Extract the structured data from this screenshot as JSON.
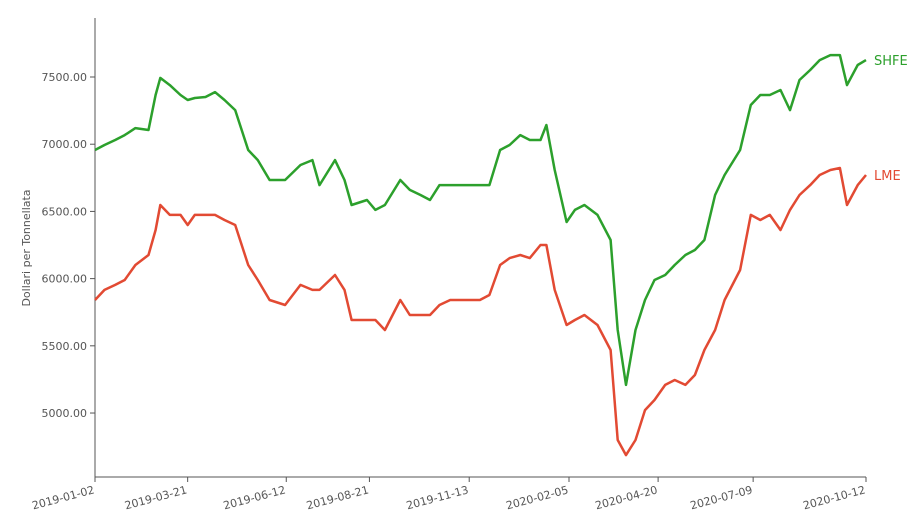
{
  "chart_data": {
    "type": "line",
    "y_label": "Dollari per Tonnellata",
    "x": [
      "2019-01-02",
      "2019-01-10",
      "2019-01-19",
      "2019-01-27",
      "2019-02-05",
      "2019-02-16",
      "2019-02-22",
      "2019-02-26",
      "2019-03-06",
      "2019-03-15",
      "2019-03-21",
      "2019-03-27",
      "2019-04-05",
      "2019-04-13",
      "2019-04-21",
      "2019-04-30",
      "2019-05-11",
      "2019-05-19",
      "2019-05-29",
      "2019-06-11",
      "2019-06-24",
      "2019-07-04",
      "2019-07-10",
      "2019-07-23",
      "2019-07-31",
      "2019-08-06",
      "2019-08-19",
      "2019-08-26",
      "2019-09-03",
      "2019-09-16",
      "2019-09-24",
      "2019-10-03",
      "2019-10-11",
      "2019-10-19",
      "2019-10-28",
      "2019-11-11",
      "2019-11-22",
      "2019-11-30",
      "2019-12-09",
      "2019-12-17",
      "2019-12-26",
      "2020-01-03",
      "2020-01-12",
      "2020-01-17",
      "2020-01-24",
      "2020-02-03",
      "2020-02-10",
      "2020-02-18",
      "2020-02-29",
      "2020-03-11",
      "2020-03-17",
      "2020-03-24",
      "2020-04-01",
      "2020-04-09",
      "2020-04-17",
      "2020-04-26",
      "2020-05-04",
      "2020-05-13",
      "2020-05-21",
      "2020-05-29",
      "2020-06-07",
      "2020-06-15",
      "2020-06-28",
      "2020-07-07",
      "2020-07-15",
      "2020-07-23",
      "2020-08-01",
      "2020-08-09",
      "2020-08-17",
      "2020-08-26",
      "2020-09-03",
      "2020-09-12",
      "2020-09-20",
      "2020-09-26",
      "2020-10-05",
      "2020-10-12"
    ],
    "series": [
      {
        "name": "SHFE",
        "color": "#2ca02c",
        "values": [
          6957,
          6994,
          7031,
          7068,
          7120,
          7106,
          7366,
          7493,
          7440,
          7366,
          7329,
          7344,
          7351,
          7388,
          7329,
          7254,
          6957,
          6882,
          6734,
          6734,
          6845,
          6882,
          6696,
          6882,
          6734,
          6548,
          6585,
          6511,
          6548,
          6734,
          6660,
          6622,
          6585,
          6696,
          6696,
          6696,
          6696,
          6696,
          6957,
          6994,
          7068,
          7031,
          7031,
          7143,
          6808,
          6421,
          6511,
          6548,
          6474,
          6287,
          5618,
          5209,
          5618,
          5841,
          5990,
          6027,
          6101,
          6176,
          6213,
          6287,
          6622,
          6771,
          6957,
          7292,
          7366,
          7366,
          7403,
          7254,
          7478,
          7552,
          7626,
          7663,
          7663,
          7440,
          7589,
          7626
        ]
      },
      {
        "name": "LME",
        "color": "#e24a33",
        "values": [
          5841,
          5916,
          5953,
          5990,
          6101,
          6176,
          6362,
          6548,
          6474,
          6474,
          6399,
          6474,
          6474,
          6474,
          6436,
          6399,
          6101,
          5990,
          5841,
          5804,
          5953,
          5916,
          5916,
          6027,
          5916,
          5692,
          5692,
          5692,
          5618,
          5841,
          5729,
          5729,
          5729,
          5804,
          5841,
          5841,
          5841,
          5878,
          6101,
          6153,
          6176,
          6153,
          6250,
          6250,
          5916,
          5655,
          5692,
          5729,
          5655,
          5469,
          4799,
          4687,
          4799,
          5022,
          5097,
          5209,
          5246,
          5209,
          5283,
          5469,
          5618,
          5841,
          6064,
          6474,
          6436,
          6474,
          6362,
          6511,
          6622,
          6696,
          6771,
          6808,
          6823,
          6548,
          6696,
          6771
        ]
      }
    ],
    "ylim": [
      4524,
      7939
    ],
    "yticks": [
      {
        "value": 5000,
        "label": "5000.00"
      },
      {
        "value": 5500,
        "label": "5500.00"
      },
      {
        "value": 6000,
        "label": "6000.00"
      },
      {
        "value": 6500,
        "label": "6500.00"
      },
      {
        "value": 7000,
        "label": "7000.00"
      },
      {
        "value": 7500,
        "label": "7500.00"
      }
    ],
    "xlim": [
      "2019-01-02",
      "2020-10-12"
    ],
    "xticks": [
      "2019-01-02",
      "2019-03-21",
      "2019-06-12",
      "2019-08-21",
      "2019-11-13",
      "2020-02-05",
      "2020-04-20",
      "2020-07-09",
      "2020-10-12"
    ]
  }
}
